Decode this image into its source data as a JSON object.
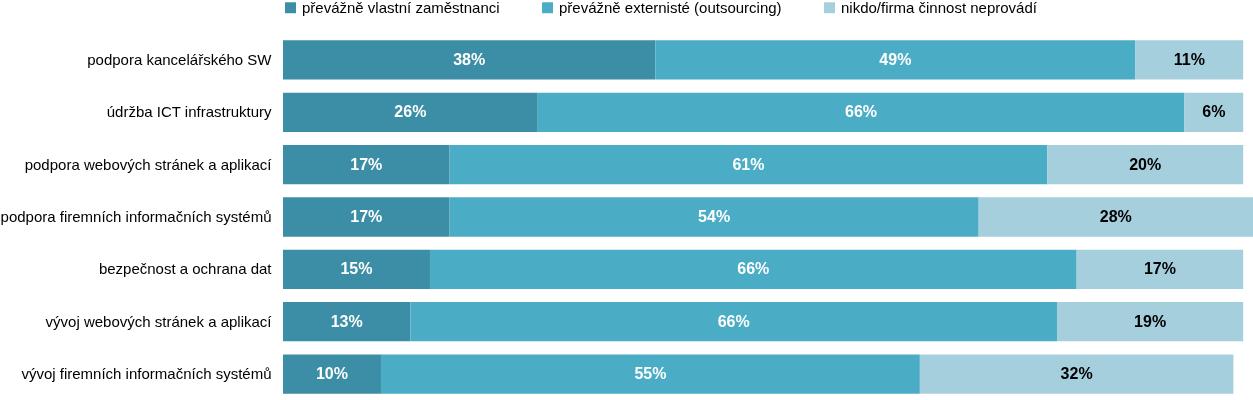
{
  "chart_data": {
    "type": "bar",
    "orientation": "horizontal",
    "stacked": true,
    "legend": "top",
    "categories": [
      "podpora kancelářského SW",
      "údržba ICT infrastruktury",
      "podpora webových stránek a aplikací",
      "podpora firemních informačních systémů",
      "bezpečnost  a ochrana dat",
      "vývoj webových stránek a aplikací",
      "vývoj firemních informačních systémů"
    ],
    "series": [
      {
        "name": "převážně vlastní zaměstnanci",
        "color": "#3b8ea5",
        "values": [
          38,
          26,
          17,
          17,
          15,
          13,
          10
        ],
        "value_labels": [
          "38%",
          "26%",
          "17%",
          "17%",
          "15%",
          "13%",
          "10%"
        ]
      },
      {
        "name": "převážně externisté (outsourcing)",
        "color": "#4bacc6",
        "values": [
          49,
          66,
          61,
          54,
          66,
          66,
          55
        ],
        "value_labels": [
          "49%",
          "66%",
          "61%",
          "54%",
          "66%",
          "66%",
          "55%"
        ]
      },
      {
        "name": "nikdo/firma činnost neprovádí",
        "color": "#a5cfdd",
        "values": [
          11,
          6,
          20,
          28,
          17,
          19,
          32
        ],
        "value_labels": [
          "11%",
          "6%",
          "20%",
          "28%",
          "17%",
          "19%",
          "32%"
        ]
      }
    ]
  }
}
